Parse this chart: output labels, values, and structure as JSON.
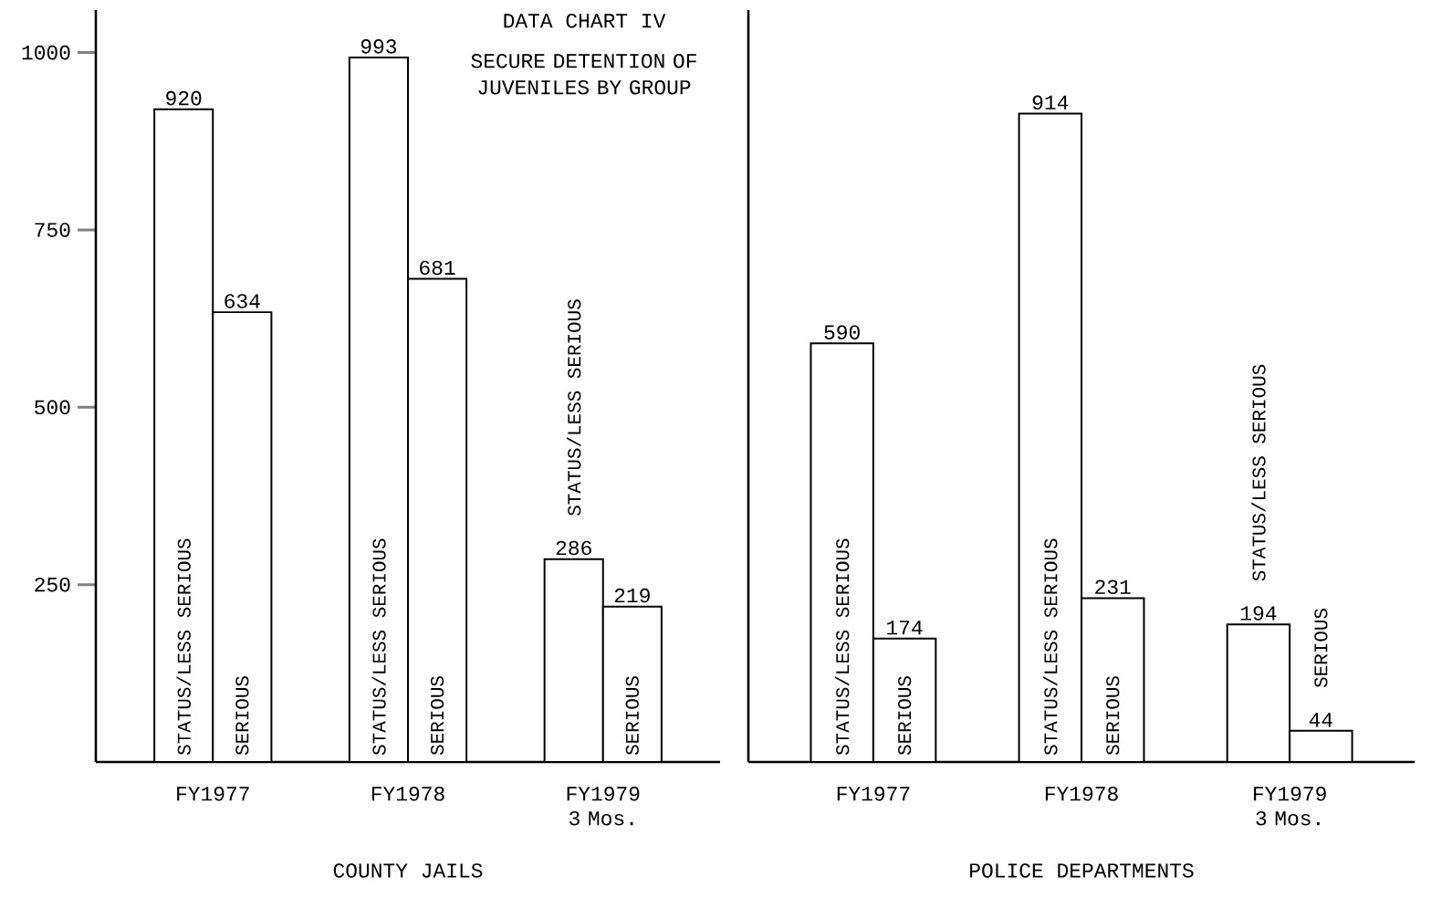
{
  "chart_data": [
    {
      "type": "bar",
      "title": "DATA CHART IV",
      "subtitle": "SECURE DETENTION OF JUVENILES BY GROUP",
      "xlabel": "COUNTY JAILS",
      "categories": [
        "FY1977",
        "FY1978",
        "FY1979 3 Mos."
      ],
      "series": [
        {
          "name": "STATUS/LESS SERIOUS",
          "color": "#ffffff",
          "values": [
            920,
            993,
            286
          ]
        },
        {
          "name": "SERIOUS",
          "color": "#ffffff",
          "values": [
            634,
            681,
            219
          ]
        }
      ],
      "ylim": [
        0,
        1060
      ],
      "yticks": [
        250,
        500,
        750,
        1000
      ],
      "data_labels": true
    },
    {
      "type": "bar",
      "xlabel": "POLICE DEPARTMENTS",
      "categories": [
        "FY1977",
        "FY1978",
        "FY1979 3 Mos."
      ],
      "series": [
        {
          "name": "STATUS/LESS SERIOUS",
          "color": "#ffffff",
          "values": [
            590,
            914,
            194
          ]
        },
        {
          "name": "SERIOUS",
          "color": "#ffffff",
          "values": [
            174,
            231,
            44
          ]
        }
      ],
      "ylim": [
        0,
        1060
      ],
      "tick_labels": "x",
      "data_labels": true
    }
  ]
}
